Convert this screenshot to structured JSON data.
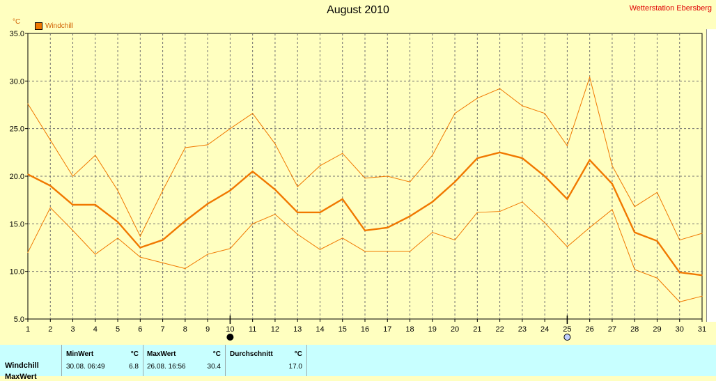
{
  "header": {
    "title": "August 2010",
    "station": "Wetterstation Ebersberg",
    "unit": "°C",
    "legend_label": "Windchill"
  },
  "colors": {
    "line": "#f07800",
    "background": "#ffffc0",
    "grid": "#707070",
    "station": "#e00000",
    "stats_bg": "#c8ffff"
  },
  "chart_data": {
    "type": "line",
    "x": [
      1,
      2,
      3,
      4,
      5,
      6,
      7,
      8,
      9,
      10,
      11,
      12,
      13,
      14,
      15,
      16,
      17,
      18,
      19,
      20,
      21,
      22,
      23,
      24,
      25,
      26,
      27,
      28,
      29,
      30,
      31
    ],
    "ylim": [
      5.0,
      35.0
    ],
    "yticks": [
      "5.0",
      "10.0",
      "15.0",
      "20.0",
      "25.0",
      "30.0",
      "35.0"
    ],
    "xticks": [
      "1",
      "2",
      "3",
      "4",
      "5",
      "6",
      "7",
      "8",
      "9",
      "10",
      "11",
      "12",
      "13",
      "14",
      "15",
      "16",
      "17",
      "18",
      "19",
      "20",
      "21",
      "22",
      "23",
      "24",
      "25",
      "26",
      "27",
      "28",
      "29",
      "30",
      "31"
    ],
    "grid": true,
    "legend_position": "top-left",
    "series": [
      {
        "name": "Windchill",
        "role": "avg",
        "values": [
          20.2,
          19.0,
          17.0,
          17.0,
          15.2,
          12.5,
          13.3,
          15.3,
          17.1,
          18.5,
          20.5,
          18.6,
          16.2,
          16.2,
          17.6,
          14.3,
          14.6,
          15.8,
          17.3,
          19.4,
          21.9,
          22.5,
          21.9,
          20.0,
          17.6,
          21.7,
          19.2,
          14.1,
          13.2,
          9.9,
          9.6
        ]
      },
      {
        "role": "max",
        "values": [
          27.6,
          23.8,
          20.0,
          22.2,
          18.5,
          13.7,
          18.5,
          23.0,
          23.3,
          25.0,
          26.6,
          23.4,
          18.9,
          21.1,
          22.4,
          19.8,
          20.0,
          19.4,
          22.2,
          26.6,
          28.2,
          29.2,
          27.4,
          26.6,
          23.2,
          30.4,
          21.1,
          16.8,
          18.3,
          13.3,
          14.0
        ]
      },
      {
        "role": "min",
        "values": [
          12.0,
          16.7,
          14.3,
          11.8,
          13.5,
          11.5,
          10.9,
          10.3,
          11.8,
          12.4,
          15.0,
          16.0,
          13.9,
          12.3,
          13.5,
          12.1,
          12.1,
          12.1,
          14.1,
          13.3,
          16.2,
          16.3,
          17.3,
          15.1,
          12.6,
          14.6,
          16.5,
          10.2,
          9.3,
          6.8,
          7.4
        ]
      }
    ],
    "moon_markers": [
      {
        "day": 10,
        "phase": "new"
      },
      {
        "day": 25,
        "phase": "full"
      }
    ]
  },
  "stats": {
    "row_label": "Windchill",
    "next_row_label": "MaxWert",
    "min": {
      "header": "MinWert",
      "unit": "°C",
      "datetime": "30.08.  06:49",
      "value": "6.8"
    },
    "max": {
      "header": "MaxWert",
      "unit": "°C",
      "datetime": "26.08.  16:56",
      "value": "30.4"
    },
    "avg": {
      "header": "Durchschnitt",
      "unit": "°C",
      "value": "17.0"
    }
  }
}
